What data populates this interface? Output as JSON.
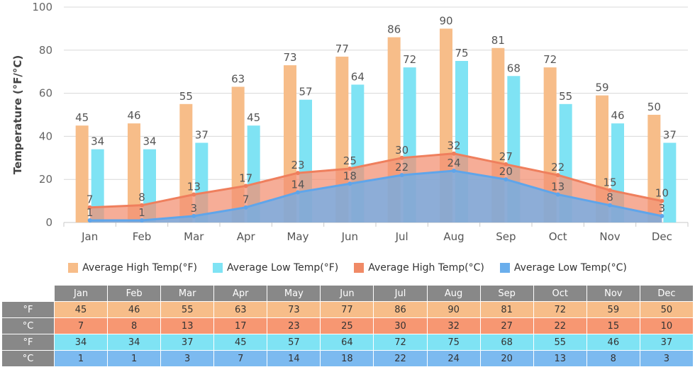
{
  "chart_data": {
    "type": "bar",
    "categories": [
      "Jan",
      "Feb",
      "Mar",
      "Apr",
      "May",
      "Jun",
      "Jul",
      "Aug",
      "Sep",
      "Oct",
      "Nov",
      "Dec"
    ],
    "ylabel": "Temperature (°F/°C)",
    "ylim": [
      0,
      100
    ],
    "yticks": [
      0,
      20,
      40,
      60,
      80,
      100
    ],
    "grid": true,
    "legend_position": "bottom",
    "series": [
      {
        "name": "Average High Temp(°F)",
        "kind": "bar",
        "color": "#f7bd89",
        "values": [
          45,
          46,
          55,
          63,
          73,
          77,
          86,
          90,
          81,
          72,
          59,
          50
        ]
      },
      {
        "name": "Average Low Temp(°F)",
        "kind": "bar",
        "color": "#7fe3f4",
        "values": [
          34,
          34,
          37,
          45,
          57,
          64,
          72,
          75,
          68,
          55,
          46,
          37
        ]
      },
      {
        "name": "Average High Temp(°C)",
        "kind": "area",
        "color": "#f08a66",
        "values": [
          7,
          8,
          13,
          17,
          23,
          25,
          30,
          32,
          27,
          22,
          15,
          10
        ]
      },
      {
        "name": "Average Low Temp(°C)",
        "kind": "area",
        "color": "#6aaeec",
        "values": [
          1,
          1,
          3,
          7,
          14,
          18,
          22,
          24,
          20,
          13,
          8,
          3
        ]
      }
    ]
  },
  "table": {
    "months": [
      "Jan",
      "Feb",
      "Mar",
      "Apr",
      "May",
      "Jun",
      "Jul",
      "Aug",
      "Sep",
      "Oct",
      "Nov",
      "Dec"
    ],
    "rows": [
      {
        "unit": "°F",
        "values": [
          "45",
          "46",
          "55",
          "63",
          "73",
          "77",
          "86",
          "90",
          "81",
          "72",
          "59",
          "50"
        ]
      },
      {
        "unit": "°C",
        "values": [
          "7",
          "8",
          "13",
          "17",
          "23",
          "25",
          "30",
          "32",
          "27",
          "22",
          "15",
          "10"
        ]
      },
      {
        "unit": "°F",
        "values": [
          "34",
          "34",
          "37",
          "45",
          "57",
          "64",
          "72",
          "75",
          "68",
          "55",
          "46",
          "37"
        ]
      },
      {
        "unit": "°C",
        "values": [
          "1",
          "1",
          "3",
          "7",
          "14",
          "18",
          "22",
          "24",
          "20",
          "13",
          "8",
          "3"
        ]
      }
    ]
  }
}
